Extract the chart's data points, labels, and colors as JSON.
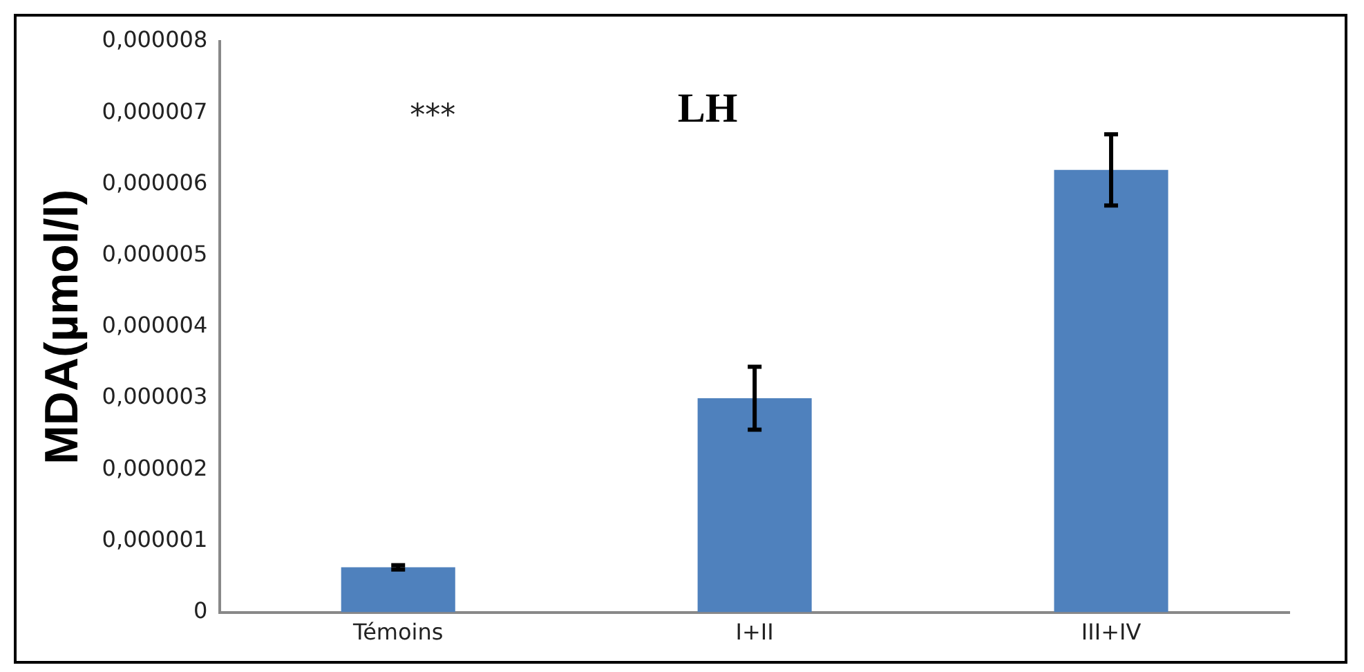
{
  "chart_data": {
    "type": "bar",
    "title": "LH",
    "ylabel": "MDA(µmol/l)",
    "categories": [
      "Témoins",
      "I+II",
      "III+IV"
    ],
    "values": [
      6.3e-07,
      3e-06,
      6.2e-06
    ],
    "errors": [
      3e-08,
      4.4e-07,
      5e-07
    ],
    "color": "#4f81bd",
    "ylim": [
      0,
      8e-06
    ],
    "yticks": [
      0,
      {
        "value": 1e-06,
        "label": "0,000001"
      },
      {
        "value": 2e-06,
        "label": "0,000002"
      },
      {
        "value": 3e-06,
        "label": "0,000003"
      },
      {
        "value": 4e-06,
        "label": "0,000004"
      },
      {
        "value": 5e-06,
        "label": "0,000005"
      },
      {
        "value": 6e-06,
        "label": "0,000006"
      },
      {
        "value": 7e-06,
        "label": "0,000007"
      },
      {
        "value": 8e-06,
        "label": "0,000008"
      }
    ],
    "annotations": [
      "***"
    ],
    "grid": false,
    "legend": false
  }
}
